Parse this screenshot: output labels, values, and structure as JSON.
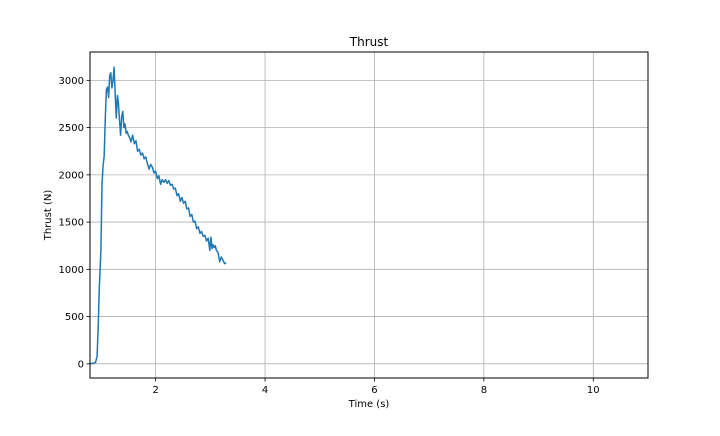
{
  "chart_data": {
    "type": "line",
    "title": "Thrust",
    "xlabel": "Time (s)",
    "ylabel": "Thrust (N)",
    "xlim": [
      0.8,
      11.0
    ],
    "ylim": [
      -150,
      3300
    ],
    "xticks": [
      2,
      4,
      6,
      8,
      10
    ],
    "yticks": [
      0,
      500,
      1000,
      1500,
      2000,
      2500,
      3000
    ],
    "grid": true,
    "line_color": "#1f77b4",
    "series": [
      {
        "x": [
          0.8,
          0.85,
          0.9,
          0.93,
          0.95,
          0.97,
          1.0,
          1.02,
          1.04,
          1.06,
          1.08,
          1.1,
          1.12,
          1.14,
          1.16,
          1.18,
          1.2,
          1.22,
          1.24,
          1.26,
          1.28,
          1.3,
          1.32,
          1.34,
          1.36,
          1.38,
          1.4,
          1.42,
          1.44,
          1.46,
          1.48,
          1.5,
          1.52,
          1.55,
          1.58,
          1.61,
          1.64,
          1.67,
          1.7,
          1.73,
          1.76,
          1.79,
          1.82,
          1.85,
          1.88,
          1.91,
          1.94,
          1.97,
          2.0,
          2.03,
          2.06,
          2.09,
          2.12,
          2.15,
          2.18,
          2.21,
          2.24,
          2.27,
          2.3,
          2.33,
          2.36,
          2.39,
          2.42,
          2.45,
          2.48,
          2.51,
          2.54,
          2.57,
          2.6,
          2.63,
          2.66,
          2.69,
          2.72,
          2.75,
          2.78,
          2.81,
          2.84,
          2.87,
          2.9,
          2.93,
          2.96,
          2.99,
          3.01,
          3.03,
          3.05,
          3.07,
          3.09,
          3.11,
          3.14,
          3.17,
          3.2,
          3.23,
          3.26,
          3.29
        ],
        "y": [
          0,
          5,
          15,
          80,
          400,
          800,
          1200,
          1900,
          2100,
          2200,
          2600,
          2900,
          2930,
          2820,
          3050,
          3080,
          2920,
          3000,
          3140,
          2850,
          2600,
          2840,
          2760,
          2580,
          2420,
          2620,
          2670,
          2500,
          2540,
          2440,
          2460,
          2420,
          2400,
          2350,
          2420,
          2330,
          2360,
          2250,
          2270,
          2210,
          2230,
          2170,
          2190,
          2120,
          2060,
          2110,
          2080,
          2020,
          2040,
          1960,
          1990,
          1900,
          1950,
          1920,
          1950,
          1910,
          1940,
          1890,
          1900,
          1850,
          1860,
          1780,
          1800,
          1720,
          1760,
          1700,
          1720,
          1640,
          1650,
          1560,
          1580,
          1500,
          1510,
          1430,
          1450,
          1380,
          1400,
          1350,
          1360,
          1300,
          1330,
          1200,
          1340,
          1220,
          1260,
          1230,
          1250,
          1200,
          1180,
          1080,
          1130,
          1100,
          1060,
          1070
        ]
      }
    ]
  }
}
